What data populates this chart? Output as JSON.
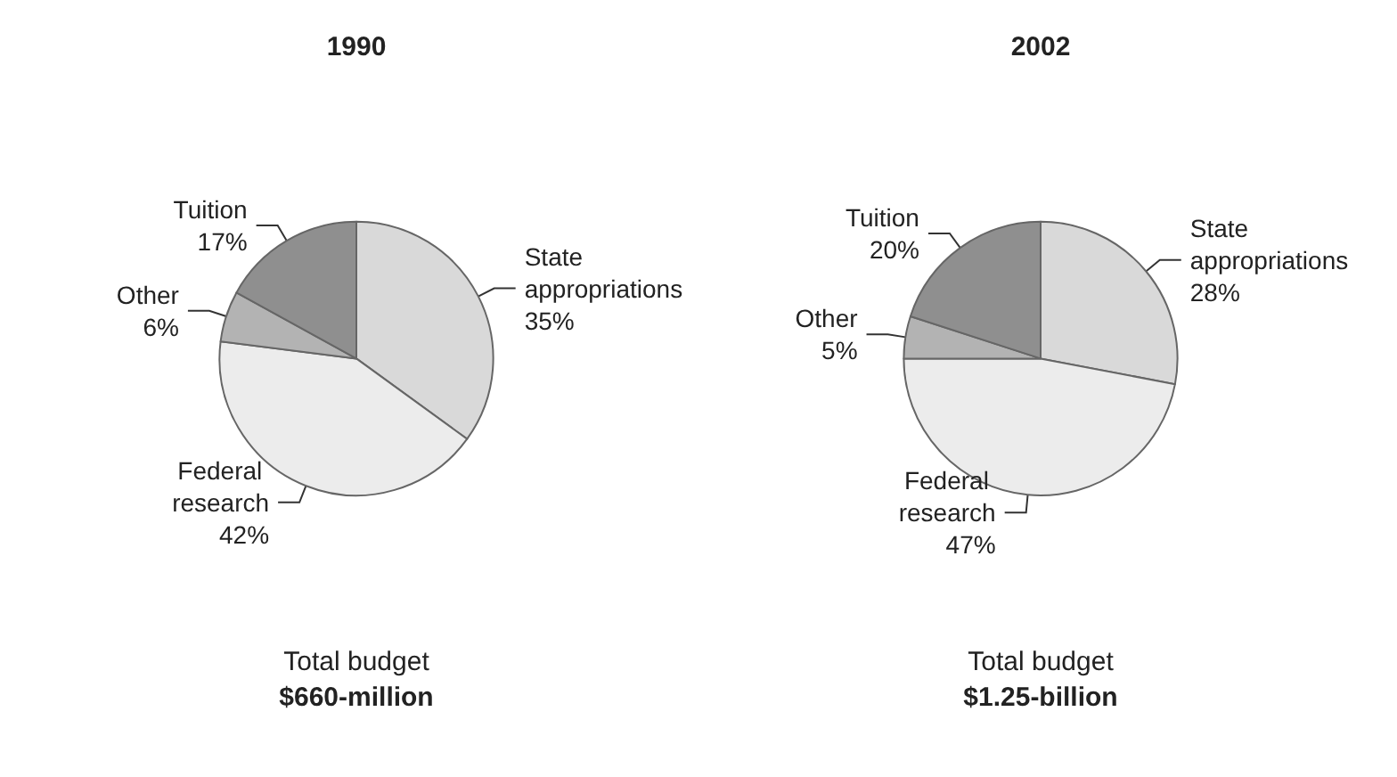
{
  "chart_data": [
    {
      "type": "pie",
      "title": "1990",
      "categories": [
        "State appropriations",
        "Federal research",
        "Other",
        "Tuition"
      ],
      "values": [
        35,
        42,
        6,
        17
      ],
      "value_labels": [
        "35%",
        "42%",
        "6%",
        "17%"
      ],
      "colors": [
        "#d9d9d9",
        "#ececec",
        "#b3b3b3",
        "#8f8f8f"
      ],
      "legend": false,
      "annotations": [
        "Total budget",
        "$660-million"
      ]
    },
    {
      "type": "pie",
      "title": "2002",
      "categories": [
        "State appropriations",
        "Federal research",
        "Other",
        "Tuition"
      ],
      "values": [
        28,
        47,
        5,
        20
      ],
      "value_labels": [
        "28%",
        "47%",
        "5%",
        "20%"
      ],
      "colors": [
        "#d9d9d9",
        "#ececec",
        "#b3b3b3",
        "#8f8f8f"
      ],
      "legend": false,
      "annotations": [
        "Total budget",
        "$1.25-billion"
      ]
    }
  ]
}
